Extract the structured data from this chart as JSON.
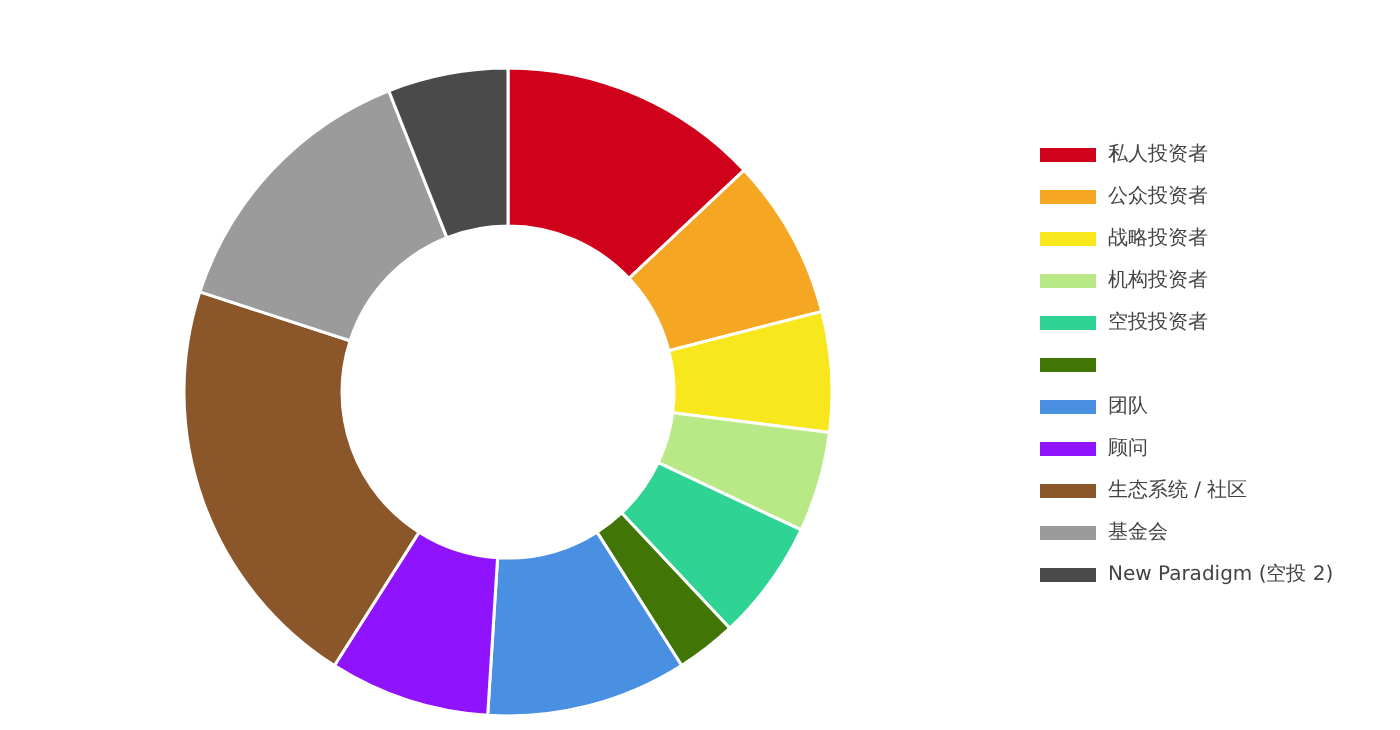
{
  "chart_data": {
    "type": "donut",
    "categories": [
      "私人投资者",
      "公众投资者",
      "战略投资者",
      "机构投资者",
      "空投投资者",
      null,
      "团队",
      "顾问",
      "生态系统 / 社区",
      "基金会",
      "New Paradigm (空投 2)"
    ],
    "values": [
      13,
      8,
      6,
      5,
      6,
      3,
      10,
      8,
      21,
      14,
      6
    ],
    "colors": [
      "#d0021b",
      "#f5a623",
      "#f8e71c",
      "#b8e986",
      "#2fd495",
      "#417505",
      "#4a90e2",
      "#9013fe",
      "#8b572a",
      "#9b9b9b",
      "#4a4a4a"
    ],
    "legend": "right"
  }
}
